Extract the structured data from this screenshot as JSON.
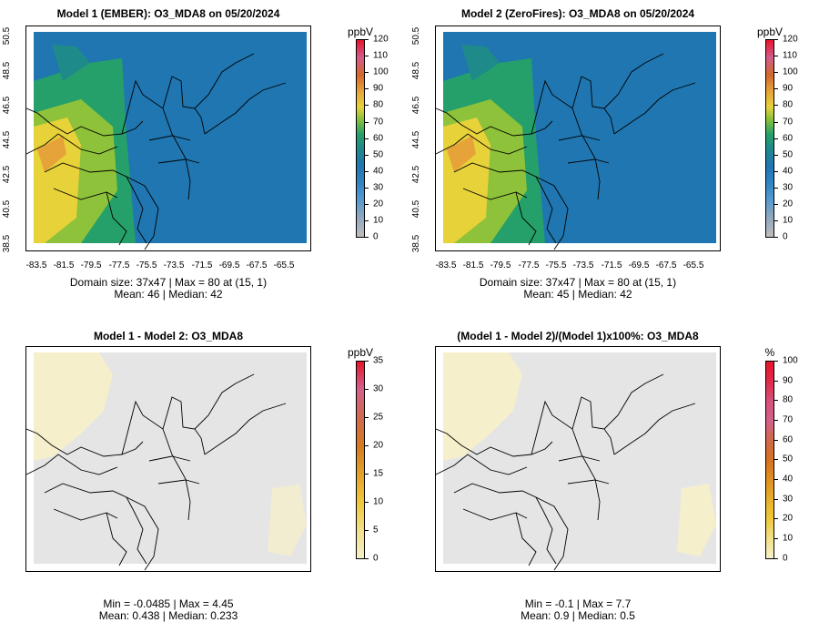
{
  "panels": [
    {
      "title": "Model 1 (EMBER): O3_MDA8 on 05/20/2024",
      "unit": "ppbV",
      "colorbar": {
        "ticks": [
          "0",
          "10",
          "20",
          "30",
          "40",
          "50",
          "60",
          "70",
          "80",
          "90",
          "100",
          "110",
          "120"
        ],
        "colors": [
          "#bdbdbd",
          "#8fa8bf",
          "#4f97cf",
          "#2f83c2",
          "#1f76b0",
          "#1f8a8a",
          "#25a06a",
          "#8dc23a",
          "#e7d23a",
          "#e6a33a",
          "#d46a2a",
          "#d55b8c",
          "#e8132b"
        ]
      },
      "stats_line1": "Domain size: 37x47 | Max = 80 at (15, 1)",
      "stats_line2": "Mean: 46 |  Median: 42",
      "xticks": [
        "-83.5",
        "-81.5",
        "-79.5",
        "-77.5",
        "-75.5",
        "-73.5",
        "-71.5",
        "-69.5",
        "-67.5",
        "-65.5"
      ],
      "yticks": [
        "38.5",
        "40.5",
        "42.5",
        "44.5",
        "46.5",
        "48.5",
        "50.5"
      ]
    },
    {
      "title": "Model 2 (ZeroFires): O3_MDA8 on 05/20/2024",
      "unit": "ppbV",
      "colorbar": {
        "ticks": [
          "0",
          "10",
          "20",
          "30",
          "40",
          "50",
          "60",
          "70",
          "80",
          "90",
          "100",
          "110",
          "120"
        ],
        "colors": [
          "#bdbdbd",
          "#8fa8bf",
          "#4f97cf",
          "#2f83c2",
          "#1f76b0",
          "#1f8a8a",
          "#25a06a",
          "#8dc23a",
          "#e7d23a",
          "#e6a33a",
          "#d46a2a",
          "#d55b8c",
          "#e8132b"
        ]
      },
      "stats_line1": "Domain size: 37x47 | Max = 80 at (15, 1)",
      "stats_line2": "Mean: 45 |  Median: 42",
      "xticks": [
        "-83.5",
        "-81.5",
        "-79.5",
        "-77.5",
        "-75.5",
        "-73.5",
        "-71.5",
        "-69.5",
        "-67.5",
        "-65.5"
      ],
      "yticks": [
        "38.5",
        "40.5",
        "42.5",
        "44.5",
        "46.5",
        "48.5",
        "50.5"
      ]
    },
    {
      "title": "Model 1 - Model 2: O3_MDA8",
      "unit": "ppbV",
      "colorbar": {
        "ticks": [
          "0",
          "5",
          "10",
          "15",
          "20",
          "25",
          "30",
          "35"
        ],
        "colors": [
          "#f5f0c8",
          "#f2e08a",
          "#efc93a",
          "#e4a02a",
          "#d57a20",
          "#cf6a4a",
          "#d4608c",
          "#e8132b"
        ]
      },
      "stats_line1": "Min = -0.0485 | Max = 4.45",
      "stats_line2": "Mean: 0.438 |  Median: 0.233"
    },
    {
      "title": "(Model 1 - Model 2)/(Model 1)x100%: O3_MDA8",
      "unit": "%",
      "colorbar": {
        "ticks": [
          "0",
          "10",
          "20",
          "30",
          "40",
          "50",
          "60",
          "70",
          "80",
          "90",
          "100"
        ],
        "colors": [
          "#f5f0c8",
          "#f2e08a",
          "#efc93a",
          "#e8b02a",
          "#e09020",
          "#d87020",
          "#cf6a4a",
          "#d4608c",
          "#d8507a",
          "#e02a48",
          "#e8132b"
        ]
      },
      "stats_line1": "Min = -0.1 | Max = 7.7",
      "stats_line2": "Mean: 0.9 |  Median: 0.5"
    }
  ]
}
